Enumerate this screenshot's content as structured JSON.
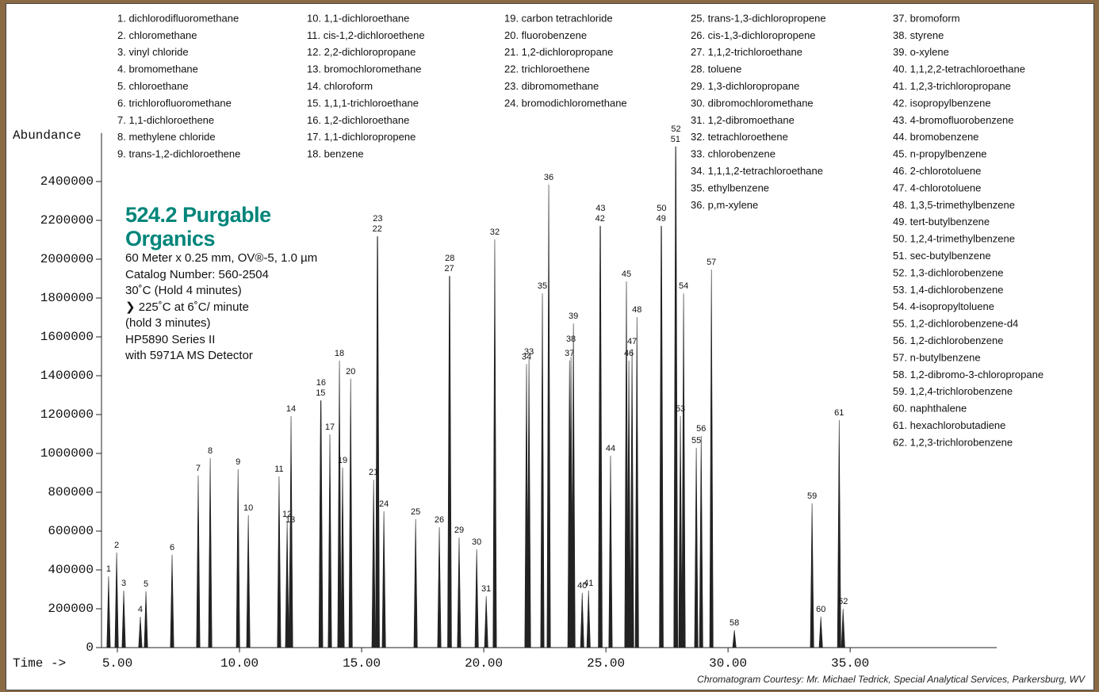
{
  "chart_data": {
    "type": "chromatogram",
    "title": "524.2 Purgable Organics",
    "subtitle_lines": [
      "60 Meter x 0.25 mm, OV®-5, 1.0 µm",
      "Catalog Number: 560-2504",
      "30˚C (Hold 4 minutes)",
      "❯ 225˚C at 6˚C/ minute",
      "(hold 3 minutes)",
      "HP5890 Series II",
      "with 5971A MS Detector"
    ],
    "y_label": "Abundance",
    "x_label": "Time ->",
    "credit": "Chromatogram Courtesy: Mr. Michael Tedrick, Special Analytical Services, Parkersburg, WV",
    "compound_columns": [
      [
        "1. dichlorodifluoromethane",
        "2. chloromethane",
        "3. vinyl chloride",
        "4. bromomethane",
        "5. chloroethane",
        "6. trichlorofluoromethane",
        "7. 1,1-dichloroethene",
        "8. methylene chloride",
        "9. trans-1,2-dichloroethene"
      ],
      [
        "10. 1,1-dichloroethane",
        "11. cis-1,2-dichloroethene",
        "12. 2,2-dichloropropane",
        "13. bromochloromethane",
        "14. chloroform",
        "15. 1,1,1-trichloroethane",
        "16. 1,2-dichloroethane",
        "17. 1,1-dichloropropene",
        "18. benzene"
      ],
      [
        "19. carbon tetrachloride",
        "20. fluorobenzene",
        "21. 1,2-dichloropropane",
        "22. trichloroethene",
        "23. dibromomethane",
        "24. bromodichloromethane"
      ],
      [
        "25. trans-1,3-dichloropropene",
        "26. cis-1,3-dichloropropene",
        "27. 1,1,2-trichloroethane",
        "28. toluene",
        "29. 1,3-dichloropropane",
        "30. dibromochloromethane",
        "31. 1,2-dibromoethane",
        "32. tetrachloroethene",
        "33. chlorobenzene",
        "34. 1,1,1,2-tetrachloroethane",
        "35. ethylbenzene",
        "36. p,m-xylene"
      ],
      [
        "37. bromoform",
        "38. styrene",
        "39. o-xylene",
        "40. 1,1,2,2-tetrachloroethane",
        "41. 1,2,3-trichloropropane",
        "42. isopropylbenzene",
        "43. 4-bromofluorobenzene",
        "44. bromobenzene",
        "45. n-propylbenzene",
        "46. 2-chlorotoluene",
        "47. 4-chlorotoluene",
        "48. 1,3,5-trimethylbenzene",
        "49. tert-butylbenzene",
        "50. 1,2,4-trimethylbenzene",
        "51. sec-butylbenzene",
        "52. 1,3-dichlorobenzene",
        "53. 1,4-dichlorobenzene",
        "54. 4-isopropyltoluene",
        "55. 1,2-dichlorobenzene-d4",
        "56. 1,2-dichlorobenzene",
        "57. n-butylbenzene",
        "58. 1,2-dibromo-3-chloropropane",
        "59. 1,2,4-trichlorobenzene",
        "60. naphthalene",
        "61. hexachlorobutadiene",
        "62. 1,2,3-trichlorobenzene"
      ]
    ],
    "peak_labels": [
      "1",
      "2",
      "3",
      "4",
      "5",
      "6",
      "7",
      "8",
      "9",
      "10",
      "11",
      "12",
      "13",
      "14",
      "15",
      "16",
      "17",
      "18",
      "19",
      "20",
      "21",
      "22",
      "23",
      "24",
      "25",
      "26",
      "27",
      "28",
      "29",
      "30",
      "31",
      "32",
      "33",
      "34",
      "35",
      "36",
      "37",
      "38",
      "39",
      "40",
      "41",
      "42",
      "43",
      "44",
      "45",
      "46",
      "47",
      "48",
      "49",
      "50",
      "51",
      "52",
      "53",
      "54",
      "55",
      "56",
      "57",
      "58",
      "59",
      "60",
      "61",
      "62"
    ],
    "x": [
      4.64,
      4.97,
      5.26,
      5.94,
      6.17,
      7.24,
      8.31,
      8.8,
      9.94,
      10.36,
      11.62,
      11.95,
      12.08,
      12.11,
      13.32,
      13.34,
      13.7,
      14.09,
      14.22,
      14.55,
      15.49,
      15.64,
      15.66,
      15.91,
      17.21,
      18.18,
      18.59,
      18.61,
      18.99,
      19.71,
      20.1,
      20.45,
      21.85,
      21.75,
      22.4,
      22.66,
      23.51,
      23.57,
      23.67,
      24.03,
      24.29,
      24.76,
      24.78,
      25.19,
      25.84,
      25.94,
      26.07,
      26.27,
      27.26,
      27.28,
      27.85,
      27.87,
      28.05,
      28.18,
      28.7,
      28.9,
      29.32,
      30.26,
      33.44,
      33.8,
      34.55,
      34.71
    ],
    "values": [
      367000,
      490000,
      294000,
      159000,
      290000,
      478000,
      886000,
      976000,
      918000,
      682000,
      882000,
      649000,
      620000,
      1192000,
      1273000,
      1273000,
      1098000,
      1478000,
      927000,
      1384000,
      865000,
      2118000,
      2118000,
      702000,
      661000,
      620000,
      1914000,
      1914000,
      567000,
      506000,
      265000,
      2102000,
      1486000,
      1460000,
      1824000,
      2384000,
      1478000,
      1498000,
      1669000,
      282000,
      294000,
      2171000,
      2171000,
      988000,
      1886000,
      1478000,
      1539000,
      1702000,
      2171000,
      2171000,
      2580000,
      2580000,
      1192000,
      1824000,
      1029000,
      1090000,
      1947000,
      90000,
      743000,
      159000,
      1171000,
      200000
    ],
    "color": "#222222",
    "xlim": [
      4.35,
      41
    ],
    "xticks": [
      {
        "value": 5,
        "label": "5.00"
      },
      {
        "value": 10,
        "label": "10.00"
      },
      {
        "value": 15,
        "label": "15.00"
      },
      {
        "value": 20,
        "label": "20.00"
      },
      {
        "value": 25,
        "label": "25.00"
      },
      {
        "value": 30,
        "label": "30.00"
      },
      {
        "value": 35,
        "label": "35.00"
      }
    ],
    "ylim": [
      0,
      2650000
    ],
    "yticks": [
      0,
      200000,
      400000,
      600000,
      800000,
      1000000,
      1200000,
      1400000,
      1600000,
      1800000,
      2000000,
      2200000,
      2400000
    ]
  }
}
